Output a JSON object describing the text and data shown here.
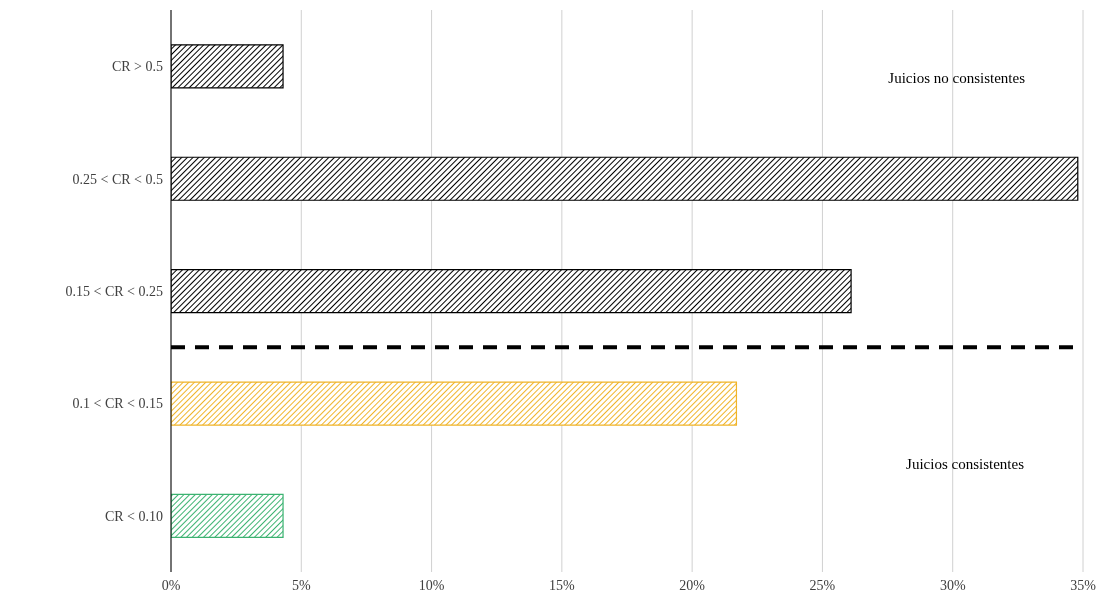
{
  "chart_data": {
    "type": "bar",
    "orientation": "horizontal",
    "categories": [
      "CR > 0.5",
      "0.25 < CR < 0.5",
      "0.15 < CR < 0.25",
      "0.1 < CR < 0.15",
      "CR < 0.10"
    ],
    "values": [
      4.3,
      34.8,
      26.1,
      21.7,
      4.3
    ],
    "colors": [
      "#000000",
      "#000000",
      "#000000",
      "#f0b429",
      "#3cb371"
    ],
    "xlim": [
      0,
      35
    ],
    "xticks": [
      {
        "value": 0,
        "label": "0%"
      },
      {
        "value": 5,
        "label": "5%"
      },
      {
        "value": 10,
        "label": "10%"
      },
      {
        "value": 15,
        "label": "15%"
      },
      {
        "value": 20,
        "label": "20%"
      },
      {
        "value": 25,
        "label": "25%"
      },
      {
        "value": 30,
        "label": "30%"
      },
      {
        "value": 35,
        "label": "35%"
      }
    ],
    "grid": "x",
    "ref_lines": [
      {
        "axis": "y",
        "value": "0.15 < CR < 0.25",
        "color": "#000000",
        "line_style": "dashed"
      }
    ],
    "annotations": [
      "Juicios no consistentes",
      "Juicios consistentes"
    ]
  }
}
